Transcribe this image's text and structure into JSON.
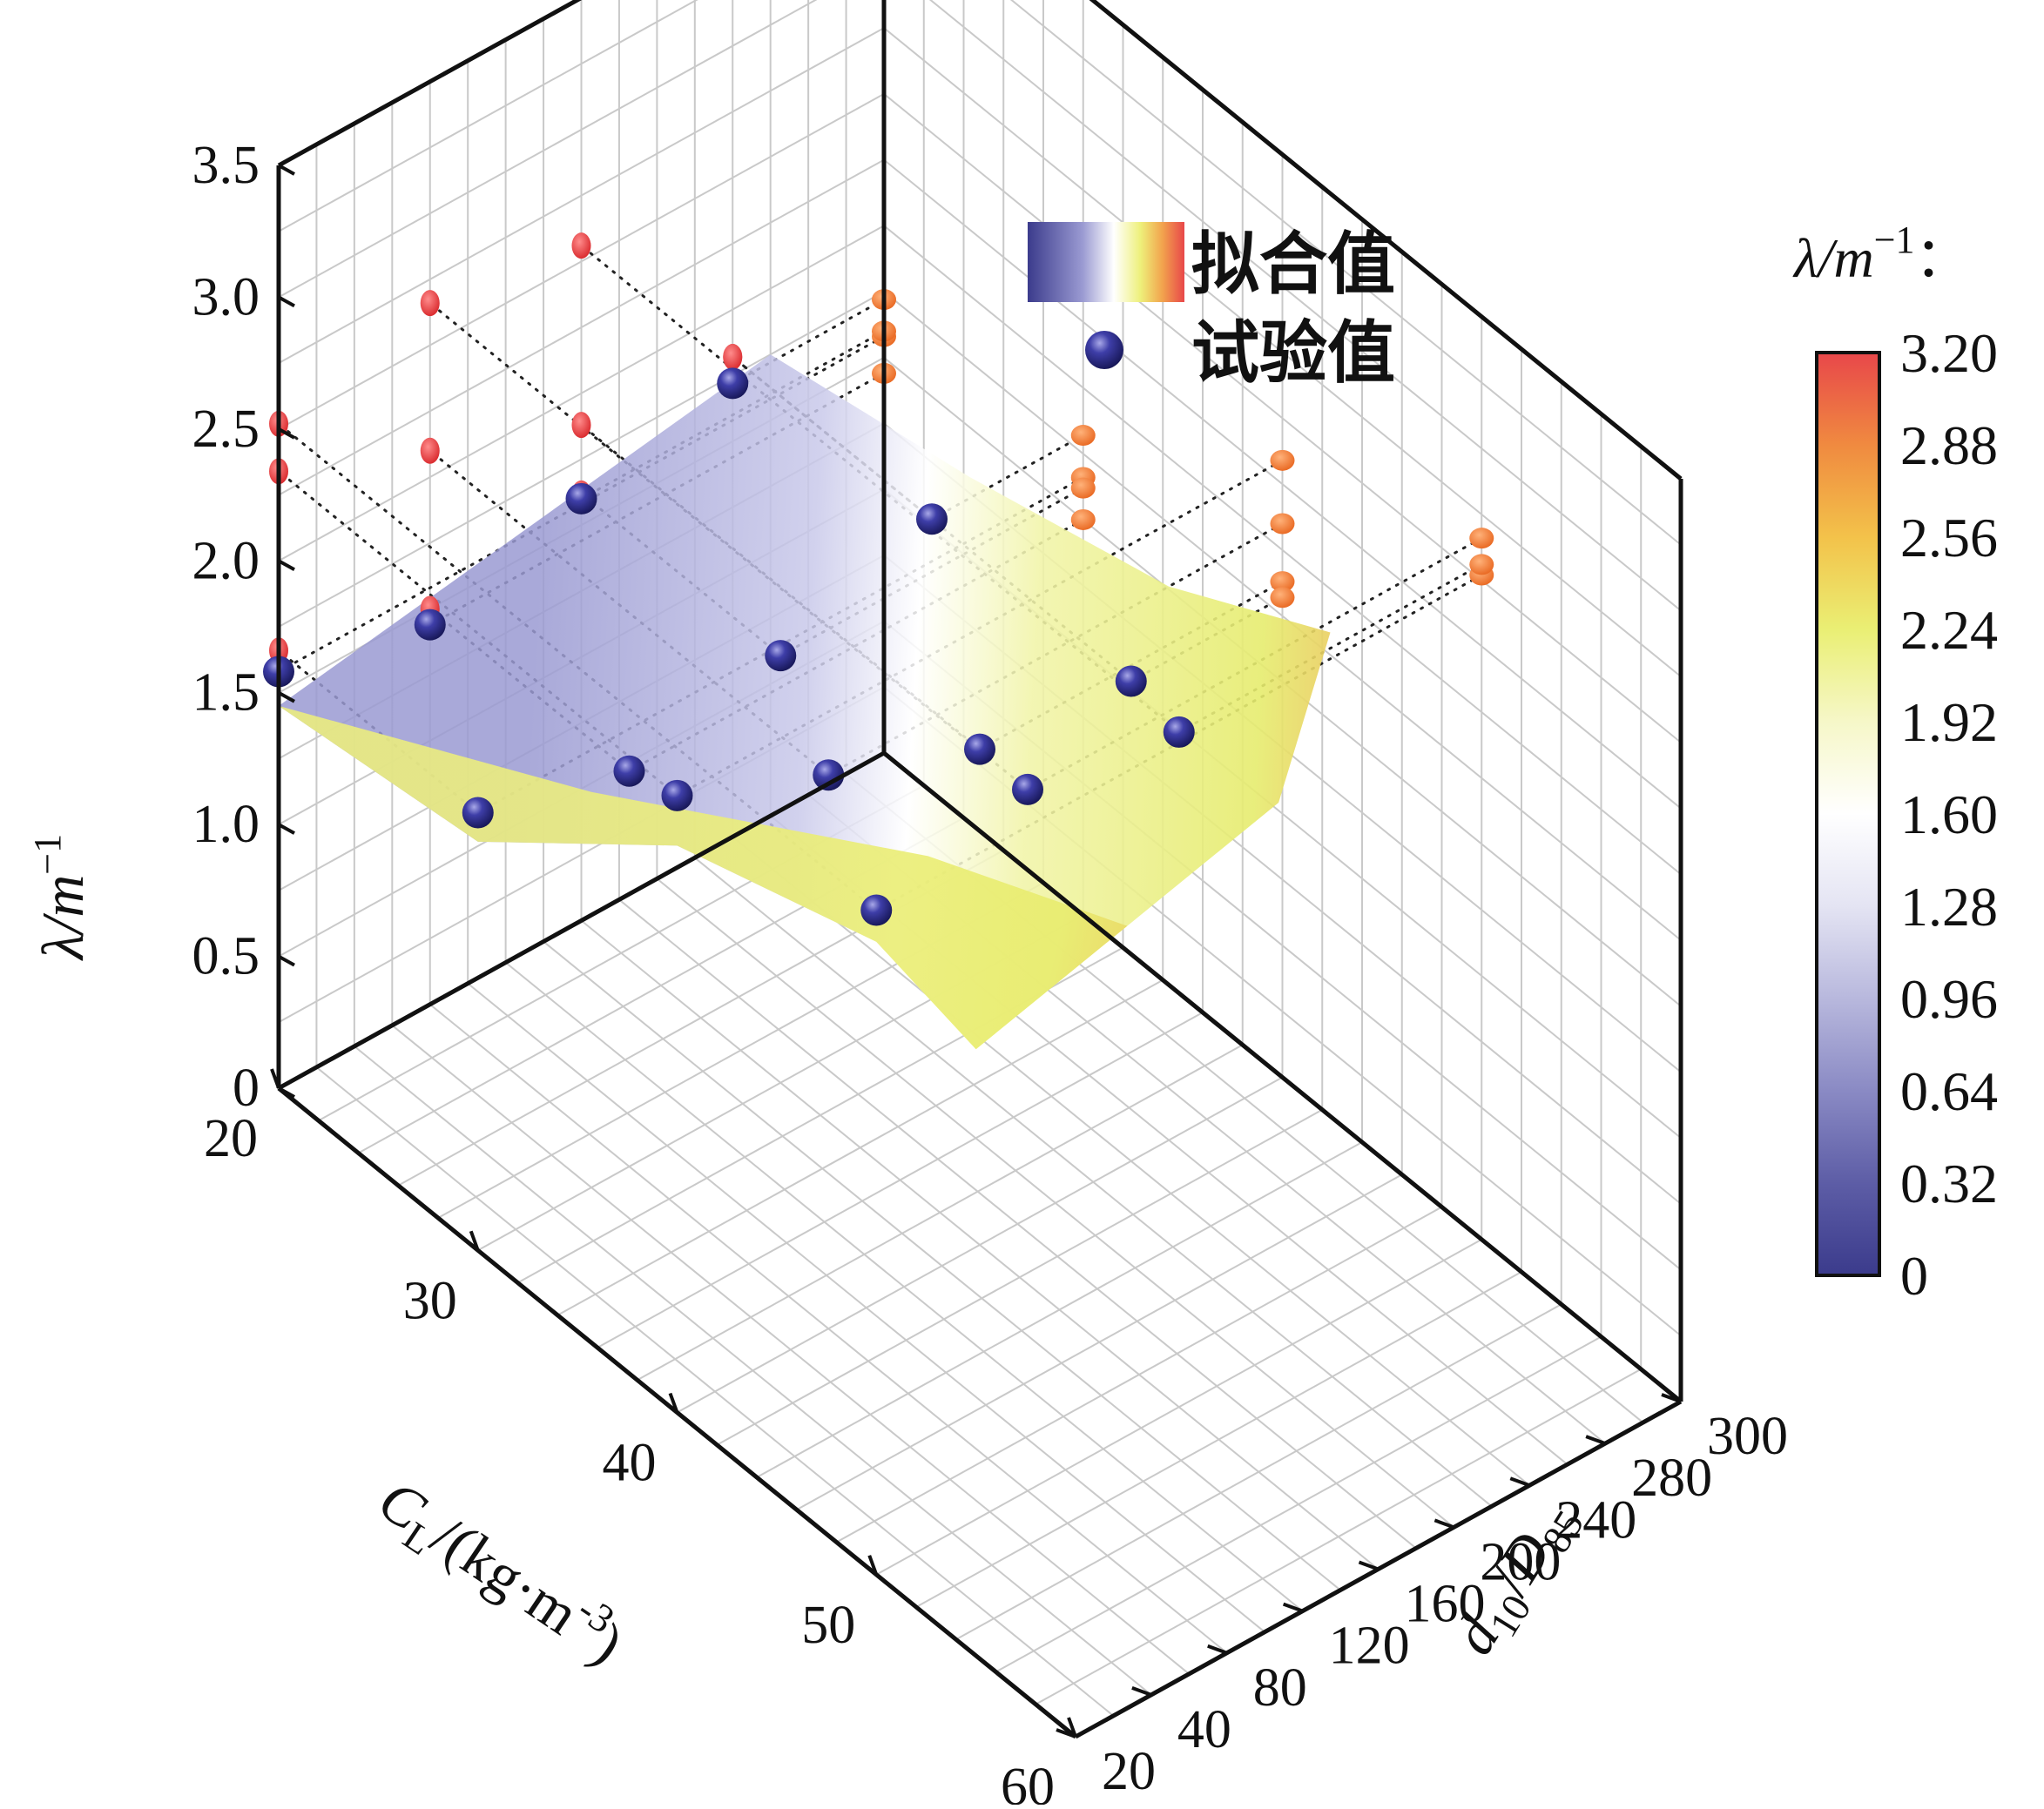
{
  "chart_data": {
    "type": "surface3d_scatter",
    "axes": {
      "z": {
        "label": "λ/m⁻¹",
        "range": [
          0,
          3.5
        ],
        "ticks": [
          "0",
          "0.5",
          "1.0",
          "1.5",
          "2.0",
          "2.5",
          "3.0",
          "3.5"
        ]
      },
      "x": {
        "label": "C_L/(kg·m⁻³)",
        "label_main": "C",
        "label_sub": "L",
        "label_rest": "/(kg·m",
        "label_exp": "-3",
        "label_close": ")",
        "range": [
          20,
          60
        ],
        "ticks": [
          "20",
          "30",
          "40",
          "50",
          "60"
        ]
      },
      "y": {
        "label": "d10/D85",
        "label_d": "d",
        "label_d_sub": "10",
        "label_slash": "/",
        "label_D": "D",
        "label_D_sub": "85",
        "ticks": [
          "20",
          "40",
          "80",
          "120",
          "160",
          "200",
          "240",
          "280",
          "300"
        ]
      }
    },
    "grid": true,
    "legend": {
      "placement": "top-center",
      "surface_label": "拟合值",
      "points_label": "试验值"
    },
    "colorbar": {
      "title": "λ/m⁻¹：",
      "title_main": "λ/m",
      "title_exp": "−1",
      "title_colon": "：",
      "range": [
        0,
        3.2
      ],
      "ticks": [
        "3.20",
        "2.88",
        "2.56",
        "2.24",
        "1.92",
        "1.60",
        "1.28",
        "0.96",
        "0.64",
        "0.32",
        "0"
      ],
      "colors": [
        "#3b3b8c",
        "#5d5da6",
        "#8a8ac4",
        "#b8b8dd",
        "#e4e4f3",
        "#ffffff",
        "#f6f7c8",
        "#eaef74",
        "#f3c24a",
        "#f08a40",
        "#e8474a"
      ]
    },
    "experimental_points": [
      {
        "CL": 20,
        "d_ratio": 20,
        "lambda": 1.58
      },
      {
        "CL": 20,
        "d_ratio": 80,
        "lambda": 1.44
      },
      {
        "CL": 20,
        "d_ratio": 160,
        "lambda": 1.6
      },
      {
        "CL": 20,
        "d_ratio": 240,
        "lambda": 1.72
      },
      {
        "CL": 30,
        "d_ratio": 20,
        "lambda": 1.66
      },
      {
        "CL": 30,
        "d_ratio": 80,
        "lambda": 1.5
      },
      {
        "CL": 30,
        "d_ratio": 160,
        "lambda": 1.62
      },
      {
        "CL": 30,
        "d_ratio": 240,
        "lambda": 1.82
      },
      {
        "CL": 40,
        "d_ratio": 20,
        "lambda": 2.34
      },
      {
        "CL": 40,
        "d_ratio": 80,
        "lambda": 2.1
      },
      {
        "CL": 40,
        "d_ratio": 160,
        "lambda": 1.88
      },
      {
        "CL": 40,
        "d_ratio": 240,
        "lambda": 1.82
      },
      {
        "CL": 50,
        "d_ratio": 20,
        "lambda": 2.52
      },
      {
        "CL": 50,
        "d_ratio": 80,
        "lambda": 2.66
      },
      {
        "CL": 50,
        "d_ratio": 160,
        "lambda": 2.56
      }
    ],
    "fitted_surface_colors": {
      "low": "#9a9ad2",
      "mid": "#ffffff",
      "high": "#eef07a",
      "top": "#f2a34d"
    }
  }
}
